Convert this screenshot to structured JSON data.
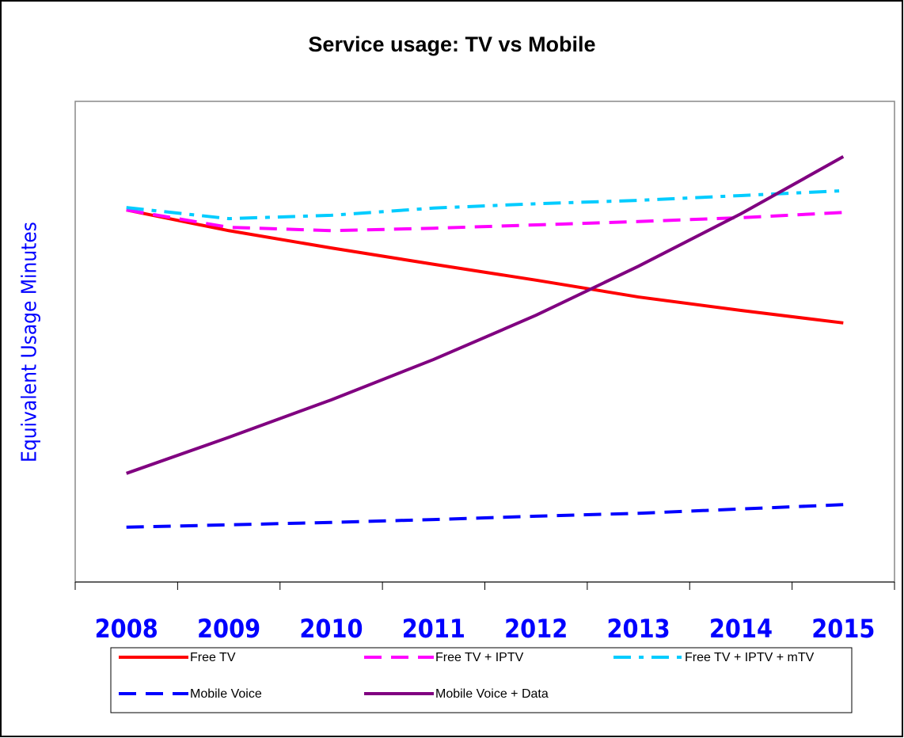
{
  "chart_data": {
    "type": "line",
    "title": "Service usage: TV vs Mobile",
    "y_label": "Equivalent Usage Minutes",
    "categories": [
      "2008",
      "2009",
      "2010",
      "2011",
      "2012",
      "2013",
      "2014",
      "2015"
    ],
    "ylim": [
      0,
      100
    ],
    "series": [
      {
        "name": "Free TV",
        "color": "#ff0000",
        "dash": "solid",
        "values": [
          77.4,
          73.1,
          69.5,
          66.1,
          62.8,
          59.3,
          56.5,
          53.9
        ]
      },
      {
        "name": "Free TV + IPTV",
        "color": "#ff00ff",
        "dash": "dashed",
        "values": [
          77.4,
          73.8,
          73.1,
          73.6,
          74.3,
          75.0,
          75.8,
          76.9
        ]
      },
      {
        "name": "Free TV + IPTV + mTV",
        "color": "#00ccff",
        "dash": "dashdot",
        "values": [
          77.9,
          75.6,
          76.3,
          77.8,
          78.7,
          79.4,
          80.4,
          81.4
        ]
      },
      {
        "name": "Mobile Voice",
        "color": "#0000ff",
        "dash": "dashed",
        "values": [
          11.4,
          11.9,
          12.4,
          13.0,
          13.7,
          14.3,
          15.2,
          16.1
        ]
      },
      {
        "name": "Mobile Voice + Data",
        "color": "#800080",
        "dash": "solid",
        "values": [
          22.6,
          30.1,
          37.9,
          46.3,
          55.5,
          65.7,
          76.6,
          88.5
        ]
      }
    ]
  }
}
